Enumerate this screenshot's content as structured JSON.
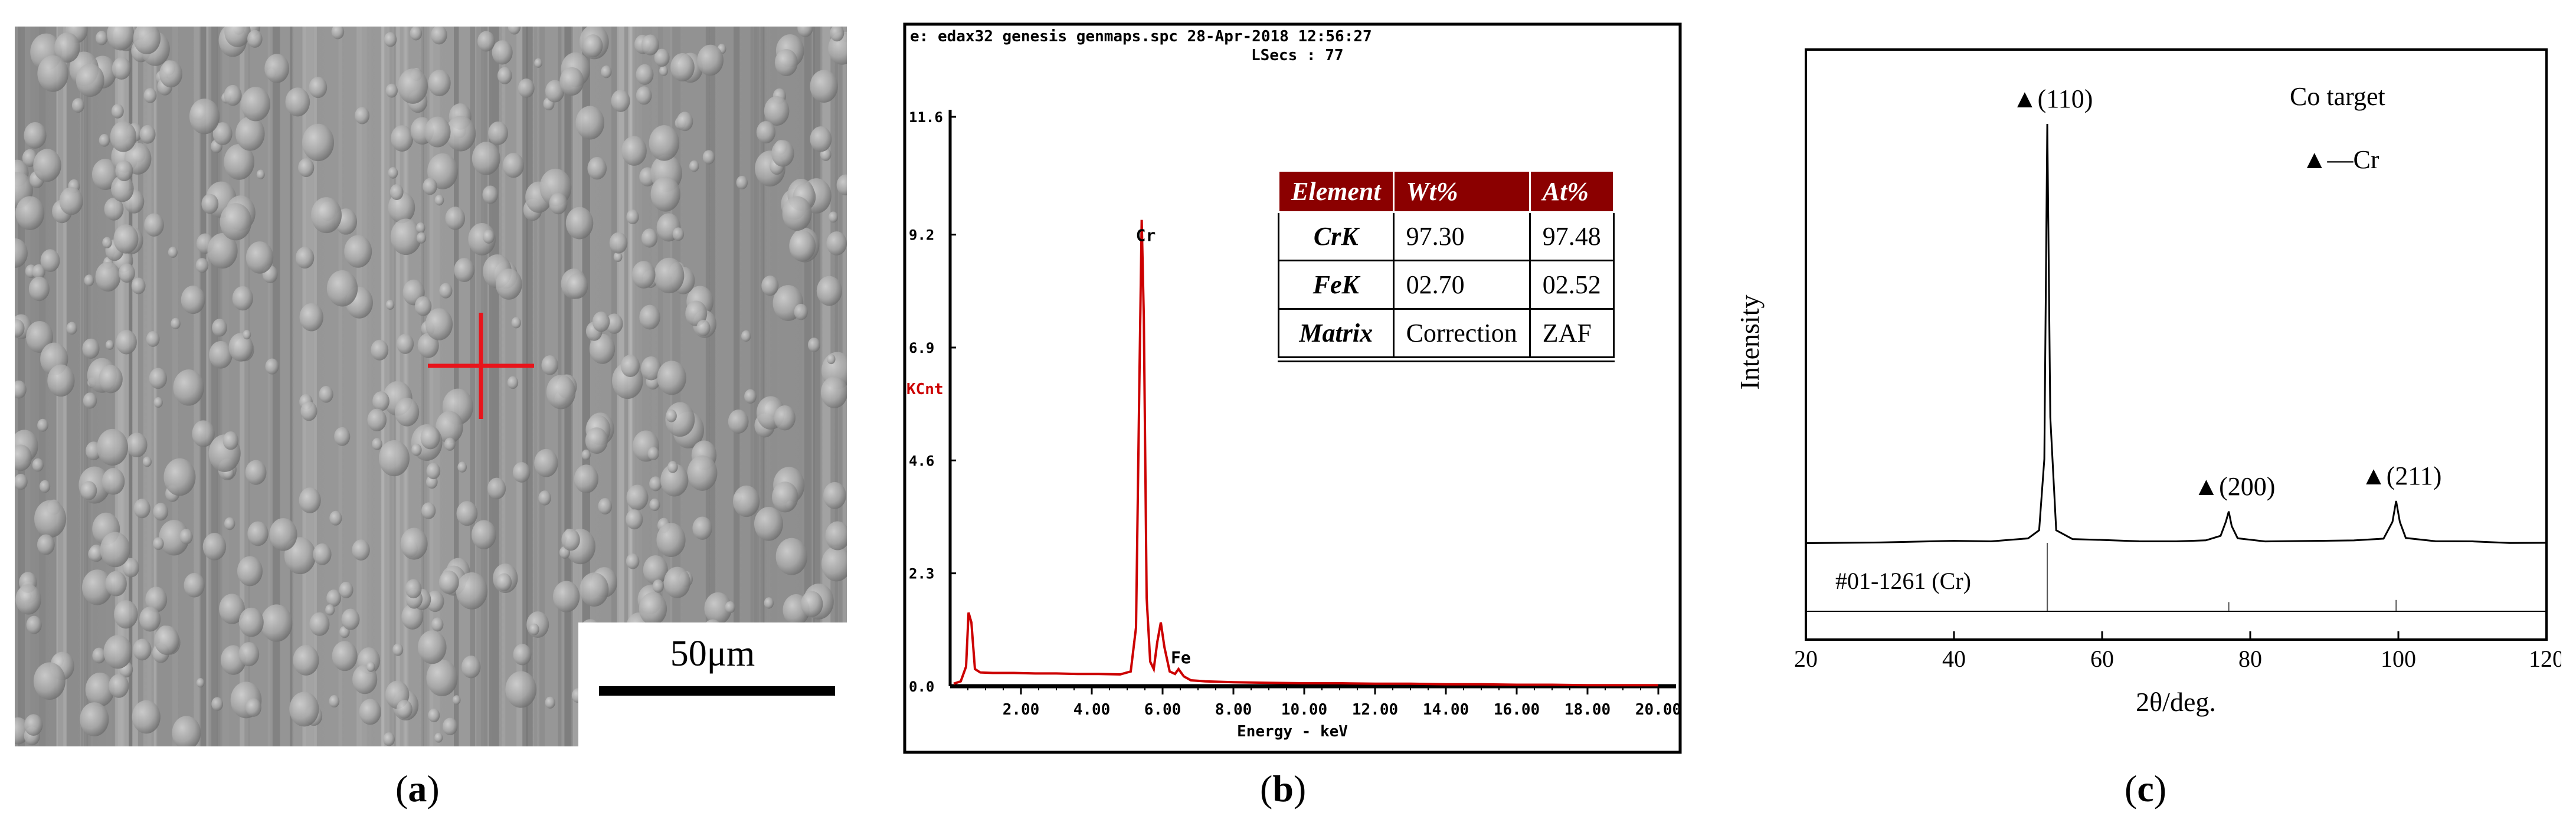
{
  "captions": {
    "a": "a",
    "b": "b",
    "c": "c"
  },
  "sem": {
    "scale_bar_label": "50μm",
    "marker_color": "#e8141b"
  },
  "chart_data": [
    {
      "type": "line",
      "panel": "b",
      "title": "e: edax32 genesis genmaps.spc  28-Apr-2018 12:56:27",
      "subtitle": "LSecs : 77",
      "xlabel": "Energy - keV",
      "ylabel": "KCnt",
      "xlim": [
        0,
        20.5
      ],
      "ylim": [
        0,
        11.6
      ],
      "x_ticks": [
        2,
        4,
        6,
        8,
        10,
        12,
        14,
        16,
        18,
        20
      ],
      "x_tick_labels": [
        "2.00",
        "4.00",
        "6.00",
        "8.00",
        "10.00",
        "12.00",
        "14.00",
        "16.00",
        "18.00",
        "20.00"
      ],
      "y_ticks": [
        0,
        2.3,
        4.6,
        6.9,
        9.2,
        11.6
      ],
      "y_tick_labels": [
        "0.0",
        "2.3",
        "4.6",
        "6.9",
        "9.2",
        "11.6"
      ],
      "line_color": "#cc0000",
      "grid": false,
      "series": [
        {
          "x": [
            0.1,
            0.3,
            0.45,
            0.52,
            0.6,
            0.7,
            0.85,
            1.2,
            1.8,
            2.4,
            3.0,
            3.6,
            4.2,
            4.8,
            5.1,
            5.25,
            5.35,
            5.41,
            5.47,
            5.55,
            5.65,
            5.75,
            5.85,
            5.95,
            6.05,
            6.2,
            6.35,
            6.45,
            6.6,
            6.8,
            7.2,
            8.0,
            9.0,
            10.0,
            11.0,
            12.0,
            13.0,
            14.0,
            15.0,
            16.0,
            17.0,
            18.0,
            19.0,
            20.0
          ],
          "y": [
            0.05,
            0.1,
            0.4,
            1.5,
            1.3,
            0.35,
            0.28,
            0.27,
            0.27,
            0.26,
            0.26,
            0.25,
            0.25,
            0.24,
            0.3,
            1.2,
            6.5,
            9.5,
            7.5,
            1.8,
            0.5,
            0.35,
            0.9,
            1.3,
            0.8,
            0.3,
            0.25,
            0.35,
            0.2,
            0.12,
            0.1,
            0.08,
            0.07,
            0.06,
            0.06,
            0.05,
            0.05,
            0.04,
            0.04,
            0.03,
            0.03,
            0.02,
            0.02,
            0.02
          ]
        }
      ],
      "peak_labels": [
        {
          "text": "Cr",
          "x": 5.41,
          "y": 9.5
        },
        {
          "text": "Fe",
          "x": 6.4,
          "y": 0.9
        }
      ],
      "table": {
        "header_bg": "#8b0000",
        "headers": [
          "Element",
          "Wt%",
          "At%"
        ],
        "rows": [
          [
            "CrK",
            "97.30",
            "97.48"
          ],
          [
            "FeK",
            "02.70",
            "02.52"
          ],
          [
            "Matrix",
            "Correction",
            "ZAF"
          ]
        ]
      }
    },
    {
      "type": "line",
      "panel": "c",
      "xlabel": "2θ/deg.",
      "ylabel": "Intensity",
      "xlim": [
        20,
        120
      ],
      "x_ticks": [
        20,
        40,
        60,
        80,
        100,
        120
      ],
      "grid": false,
      "line_color": "#000000",
      "legend": [
        "Co target",
        "▲—Cr"
      ],
      "series": [
        {
          "x": [
            20,
            30,
            40,
            45,
            50,
            51.5,
            52.2,
            52.6,
            53.0,
            53.8,
            56,
            60,
            65,
            70,
            74,
            76,
            76.7,
            77.1,
            77.5,
            78.3,
            82,
            88,
            94,
            98,
            99.2,
            99.7,
            100.2,
            101,
            105,
            110,
            115,
            120
          ],
          "y": [
            0,
            0.002,
            0.003,
            0.004,
            0.01,
            0.03,
            0.2,
            1.0,
            0.3,
            0.03,
            0.01,
            0.005,
            0.004,
            0.004,
            0.006,
            0.015,
            0.05,
            0.075,
            0.04,
            0.01,
            0.004,
            0.004,
            0.005,
            0.012,
            0.05,
            0.1,
            0.05,
            0.01,
            0.003,
            0.002,
            0.001,
            0.001
          ]
        }
      ],
      "peak_labels": [
        {
          "text": "▲(110)",
          "x": 52.6
        },
        {
          "text": "▲(200)",
          "x": 77.1
        },
        {
          "text": "▲(211)",
          "x": 99.7
        }
      ],
      "reference": {
        "label": "#01-1261 (Cr)",
        "lines": [
          {
            "x": 52.6,
            "rel": 1.0
          },
          {
            "x": 77.1,
            "rel": 0.15
          },
          {
            "x": 99.7,
            "rel": 0.3
          }
        ]
      }
    }
  ]
}
